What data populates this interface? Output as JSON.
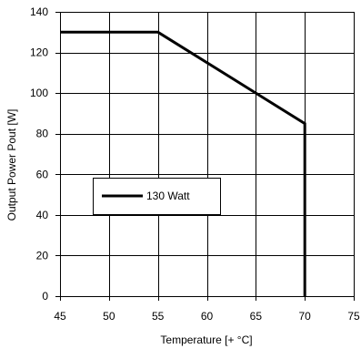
{
  "chart_data": {
    "type": "line",
    "title": "",
    "xlabel": "Temperature [+ °C]",
    "ylabel": "Output Power Pout [W]",
    "xlim": [
      45,
      75
    ],
    "ylim": [
      0,
      140
    ],
    "xticks": [
      45,
      50,
      55,
      60,
      65,
      70,
      75
    ],
    "yticks": [
      0,
      20,
      40,
      60,
      80,
      100,
      120,
      140
    ],
    "grid": true,
    "legend": {
      "placement": "center-left",
      "entries": [
        "130 Watt"
      ]
    },
    "series": [
      {
        "name": "130 Watt",
        "color": "#000000",
        "points": [
          {
            "x": 45,
            "y": 130
          },
          {
            "x": 55,
            "y": 130
          },
          {
            "x": 65,
            "y": 100
          },
          {
            "x": 70,
            "y": 85
          },
          {
            "x": 70,
            "y": 0
          }
        ]
      }
    ]
  }
}
